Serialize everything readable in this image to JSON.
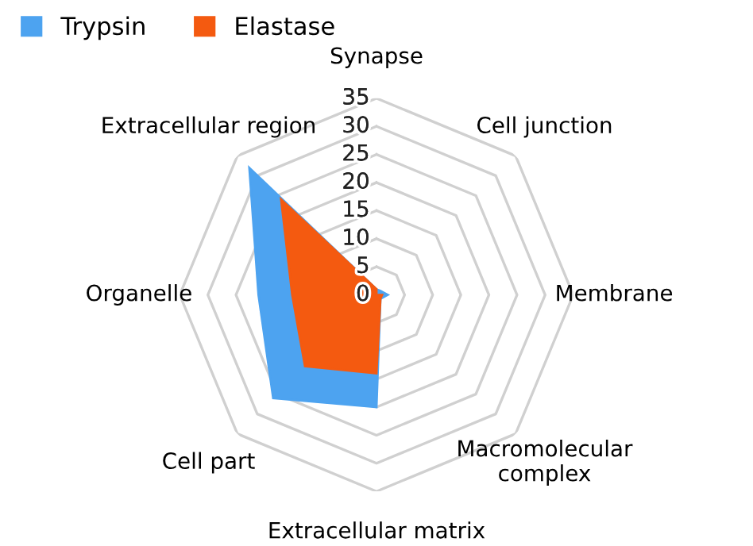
{
  "chart_data": {
    "type": "radar",
    "categories": [
      "Synapse",
      "Cell junction",
      "Membrane",
      "Macromolecular\ncomplex",
      "Extracellular matrix",
      "Cell part",
      "Organelle",
      "Extracellular region"
    ],
    "series": [
      {
        "name": "Trypsin",
        "color": "#4da3f0",
        "values": [
          1,
          1,
          2,
          1,
          20,
          26,
          21,
          32
        ]
      },
      {
        "name": "Elastase",
        "color": "#f45a10",
        "values": [
          1,
          0,
          1,
          1,
          14,
          18,
          15,
          24
        ]
      }
    ],
    "ylim": [
      0,
      35
    ],
    "yticks": [
      0,
      5,
      10,
      15,
      20,
      25,
      30,
      35
    ],
    "grid": true,
    "legend": "top left"
  }
}
